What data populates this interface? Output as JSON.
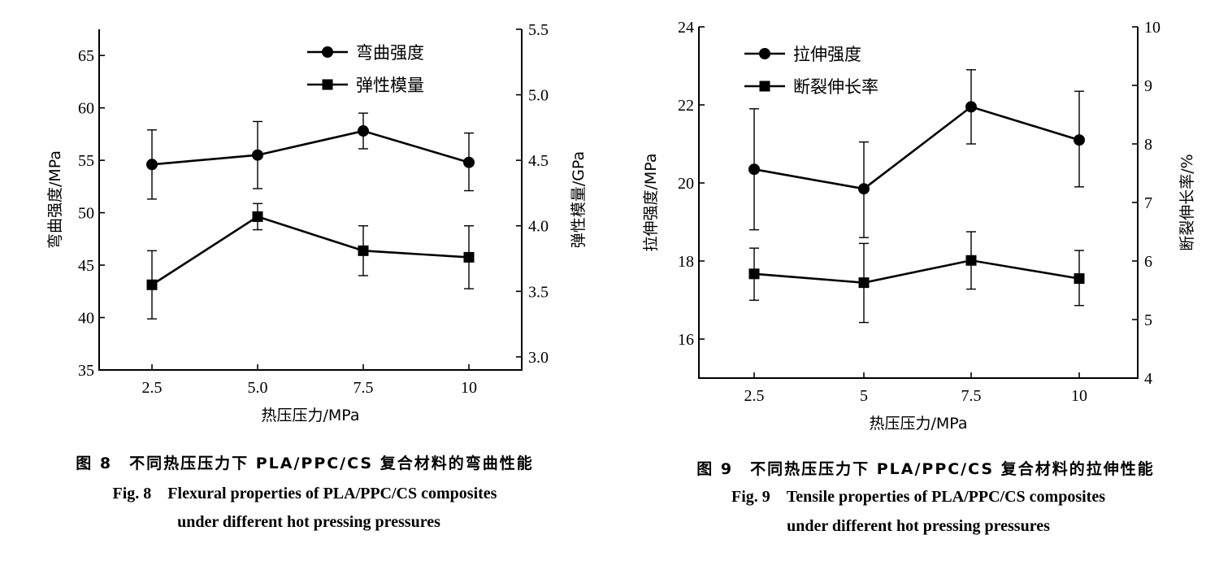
{
  "chart_data": [
    {
      "type": "line",
      "x_categories": [
        "2.5",
        "5.0",
        "7.5",
        "10"
      ],
      "xlabel": "热压压力/MPa",
      "ylabel_left": "弯曲强度/MPa",
      "ylabel_right": "弹性模量/GPa",
      "ylim_left": [
        35,
        67.5
      ],
      "yticks_left": [
        35,
        40,
        45,
        50,
        55,
        60,
        65
      ],
      "ylim_right": [
        2.9,
        5.5
      ],
      "yticks_right": [
        3.0,
        3.5,
        4.0,
        4.5,
        5.0,
        5.5
      ],
      "ytick_labels_right": [
        "3.0",
        "3.5",
        "4.0",
        "4.5",
        "5.0",
        "5.5"
      ],
      "legend_position": "top-right",
      "series": [
        {
          "name": "弯曲强度",
          "axis": "left",
          "marker": "circle",
          "values": [
            54.6,
            55.5,
            57.8,
            54.8
          ],
          "err_low": [
            51.3,
            52.3,
            56.1,
            52.1
          ],
          "err_high": [
            57.9,
            58.7,
            59.5,
            57.6
          ]
        },
        {
          "name": "弹性模量",
          "axis": "right",
          "marker": "square",
          "values": [
            3.55,
            4.07,
            3.81,
            3.76
          ],
          "err_low": [
            3.29,
            3.97,
            3.62,
            3.52
          ],
          "err_high": [
            3.81,
            4.17,
            4.0,
            4.0
          ]
        }
      ],
      "caption_cn": "图 8　不同热压压力下 PLA/PPC/CS 复合材料的弯曲性能",
      "caption_en_1": "Fig. 8　Flexural properties of PLA/PPC/CS composites",
      "caption_en_2": "under different hot pressing pressures"
    },
    {
      "type": "line",
      "x_categories": [
        "2.5",
        "5",
        "7.5",
        "10"
      ],
      "xlabel": "热压压力/MPa",
      "ylabel_left": "拉伸强度/MPa",
      "ylabel_right": "断裂伸长率/%",
      "ylim_left": [
        15,
        24
      ],
      "yticks_left": [
        16,
        18,
        20,
        22,
        24
      ],
      "ylim_right": [
        4,
        10
      ],
      "yticks_right": [
        4,
        5,
        6,
        7,
        8,
        9,
        10
      ],
      "legend_position": "top-left",
      "series": [
        {
          "name": "拉伸强度",
          "axis": "left",
          "marker": "circle",
          "values": [
            20.35,
            19.85,
            21.95,
            21.1
          ],
          "err_low": [
            18.8,
            18.6,
            21.0,
            19.9
          ],
          "err_high": [
            21.9,
            21.05,
            22.9,
            22.35
          ]
        },
        {
          "name": "断裂伸长率",
          "axis": "right",
          "marker": "square",
          "values": [
            5.78,
            5.63,
            6.01,
            5.7
          ],
          "err_low": [
            5.33,
            4.95,
            5.52,
            5.24
          ],
          "err_high": [
            6.22,
            6.3,
            6.5,
            6.18
          ]
        }
      ],
      "caption_cn": "图 9　不同热压压力下 PLA/PPC/CS 复合材料的拉伸性能",
      "caption_en_1": "Fig. 9　Tensile properties of PLA/PPC/CS composites",
      "caption_en_2": "under different hot pressing pressures"
    }
  ]
}
